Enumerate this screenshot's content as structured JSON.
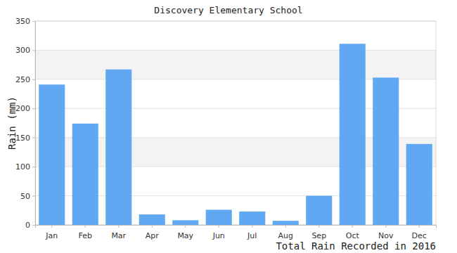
{
  "chart_data": {
    "type": "bar",
    "title": "Discovery Elementary School",
    "xlabel": "Total Rain Recorded in 2016",
    "ylabel": "Rain (mm)",
    "categories": [
      "Jan",
      "Feb",
      "Mar",
      "Apr",
      "May",
      "Jun",
      "Jul",
      "Aug",
      "Sep",
      "Oct",
      "Nov",
      "Dec"
    ],
    "values": [
      241,
      174,
      267,
      18,
      8,
      26,
      23,
      7,
      50,
      311,
      253,
      139
    ],
    "color": "#60a9f2",
    "ylim": [
      0,
      350
    ],
    "yticks": [
      0,
      50,
      100,
      150,
      200,
      250,
      300,
      350
    ],
    "grid": true
  }
}
